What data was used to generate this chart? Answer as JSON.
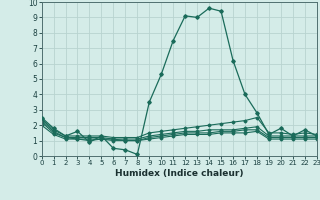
{
  "xlabel": "Humidex (Indice chaleur)",
  "xlim": [
    0,
    23
  ],
  "ylim": [
    0,
    10
  ],
  "xticks": [
    0,
    1,
    2,
    3,
    4,
    5,
    6,
    7,
    8,
    9,
    10,
    11,
    12,
    13,
    14,
    15,
    16,
    17,
    18,
    19,
    20,
    21,
    22,
    23
  ],
  "yticks": [
    0,
    1,
    2,
    3,
    4,
    5,
    6,
    7,
    8,
    9,
    10
  ],
  "bg_color": "#d4ece8",
  "grid_color": "#b8d4d0",
  "line_color": "#1a6b5a",
  "lines": [
    {
      "x": [
        0,
        1,
        2,
        3,
        4,
        5,
        6,
        7,
        8,
        9,
        10,
        11,
        12,
        13,
        14,
        15,
        16,
        17,
        18,
        19,
        20,
        21,
        22,
        23
      ],
      "y": [
        2.5,
        1.8,
        1.3,
        1.6,
        0.9,
        1.3,
        0.5,
        0.4,
        0.1,
        3.5,
        5.3,
        7.5,
        9.1,
        9.0,
        9.6,
        9.4,
        6.2,
        4.0,
        2.8,
        1.4,
        1.8,
        1.3,
        1.7,
        1.3
      ]
    },
    {
      "x": [
        0,
        1,
        2,
        3,
        4,
        5,
        6,
        7,
        8,
        9,
        10,
        11,
        12,
        13,
        14,
        15,
        16,
        17,
        18,
        19,
        20,
        21,
        22,
        23
      ],
      "y": [
        2.4,
        1.7,
        1.3,
        1.3,
        1.3,
        1.3,
        1.2,
        1.2,
        1.2,
        1.5,
        1.6,
        1.7,
        1.8,
        1.9,
        2.0,
        2.1,
        2.2,
        2.3,
        2.5,
        1.5,
        1.5,
        1.4,
        1.5,
        1.4
      ]
    },
    {
      "x": [
        0,
        1,
        2,
        3,
        4,
        5,
        6,
        7,
        8,
        9,
        10,
        11,
        12,
        13,
        14,
        15,
        16,
        17,
        18,
        19,
        20,
        21,
        22,
        23
      ],
      "y": [
        2.3,
        1.6,
        1.2,
        1.2,
        1.2,
        1.2,
        1.1,
        1.1,
        1.1,
        1.3,
        1.4,
        1.5,
        1.6,
        1.6,
        1.7,
        1.7,
        1.7,
        1.8,
        1.9,
        1.3,
        1.3,
        1.3,
        1.3,
        1.3
      ]
    },
    {
      "x": [
        0,
        1,
        2,
        3,
        4,
        5,
        6,
        7,
        8,
        9,
        10,
        11,
        12,
        13,
        14,
        15,
        16,
        17,
        18,
        19,
        20,
        21,
        22,
        23
      ],
      "y": [
        2.2,
        1.5,
        1.2,
        1.1,
        1.1,
        1.1,
        1.1,
        1.0,
        1.0,
        1.2,
        1.3,
        1.4,
        1.5,
        1.5,
        1.5,
        1.6,
        1.6,
        1.7,
        1.7,
        1.2,
        1.2,
        1.2,
        1.2,
        1.2
      ]
    },
    {
      "x": [
        0,
        1,
        2,
        3,
        4,
        5,
        6,
        7,
        8,
        9,
        10,
        11,
        12,
        13,
        14,
        15,
        16,
        17,
        18,
        19,
        20,
        21,
        22,
        23
      ],
      "y": [
        2.0,
        1.4,
        1.1,
        1.1,
        1.0,
        1.1,
        1.0,
        1.0,
        1.0,
        1.1,
        1.2,
        1.3,
        1.4,
        1.4,
        1.4,
        1.5,
        1.5,
        1.5,
        1.6,
        1.1,
        1.1,
        1.1,
        1.1,
        1.1
      ]
    }
  ]
}
